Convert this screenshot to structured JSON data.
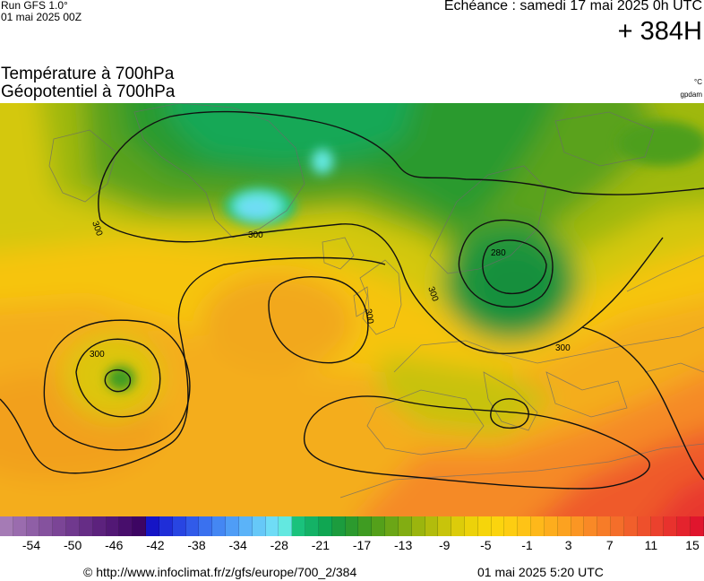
{
  "header": {
    "run_title": "Run GFS 1.0°",
    "run_date": "01 mai 2025 00Z",
    "echeance": "Echéance : samedi 17 mai 2025 0h UTC",
    "horizon": "+ 384H"
  },
  "titles": {
    "temperature": "Température à 700hPa",
    "geopotential": "Géopotentiel à 700hPa",
    "temperature_unit": "°C",
    "geopotential_unit": "gpdam"
  },
  "map": {
    "contour_labels": [
      {
        "id": "l1",
        "text": "300"
      },
      {
        "id": "l2",
        "text": "300"
      },
      {
        "id": "l3",
        "text": "300"
      },
      {
        "id": "l4",
        "text": "300"
      },
      {
        "id": "l5",
        "text": "300"
      },
      {
        "id": "l6",
        "text": "280"
      },
      {
        "id": "l7",
        "text": "300"
      }
    ]
  },
  "legend": {
    "colors": [
      "#a57bb5",
      "#9a6cae",
      "#8f5fa6",
      "#85529e",
      "#7b4596",
      "#70398e",
      "#662d86",
      "#5c227d",
      "#521875",
      "#480e6c",
      "#3d0563",
      "#1515c6",
      "#1f2ed8",
      "#2845e2",
      "#315be9",
      "#3a71ef",
      "#4487f3",
      "#4f9df6",
      "#5bb3f8",
      "#66c8f8",
      "#6fdcf6",
      "#63e8e0",
      "#1ac27c",
      "#14b266",
      "#10a652",
      "#1c9c3e",
      "#2c9a2e",
      "#3f9c22",
      "#54a01a",
      "#6ba616",
      "#82ad12",
      "#9bb50e",
      "#b2bc0c",
      "#c8c40b",
      "#dccc0a",
      "#ecd20a",
      "#f6d50b",
      "#fbd40e",
      "#fdcd12",
      "#fec316",
      "#feb81a",
      "#fdad1d",
      "#fca220",
      "#fb9623",
      "#f98926",
      "#f77c28",
      "#f46e2a",
      "#f15f2b",
      "#ee502c",
      "#eb412d",
      "#e8322d",
      "#e4232d",
      "#e0152d"
    ],
    "ticks": [
      "-54",
      "-50",
      "-46",
      "-42",
      "-38",
      "-34",
      "-28",
      "-21",
      "-17",
      "-13",
      "-9",
      "-5",
      "-1",
      "3",
      "7",
      "11",
      "15"
    ]
  },
  "footer": {
    "source": "© http://www.infoclimat.fr/z/gfs/europe/700_2/384",
    "generated": "01 mai 2025  5:20 UTC"
  }
}
